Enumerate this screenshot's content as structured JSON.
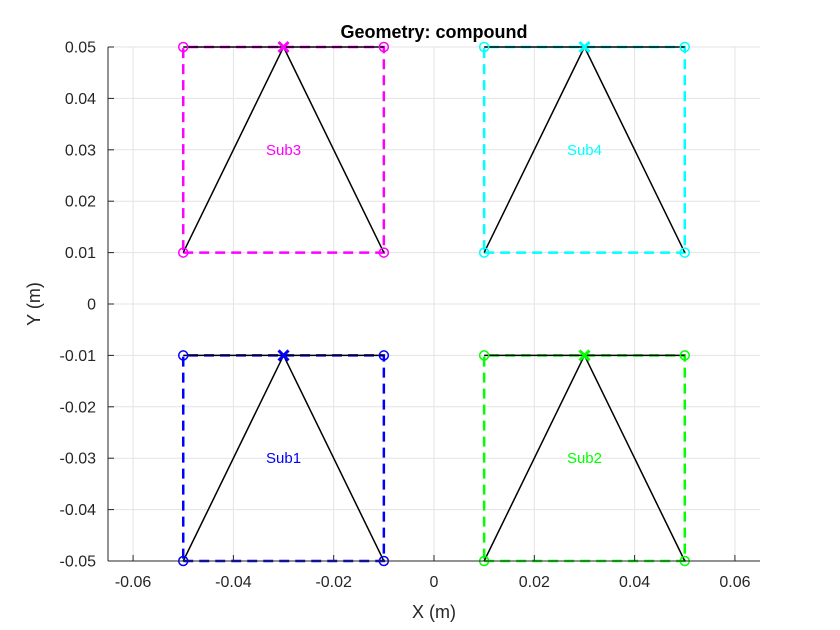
{
  "chart_data": {
    "type": "line",
    "title": "Geometry: compound",
    "xlabel": "X (m)",
    "ylabel": "Y (m)",
    "xlim": [
      -0.065,
      0.065
    ],
    "ylim": [
      -0.05,
      0.05
    ],
    "grid": true,
    "xticks": [
      -0.06,
      -0.04,
      -0.02,
      0,
      0.02,
      0.04,
      0.06
    ],
    "xtick_labels": [
      "-0.06",
      "-0.04",
      "-0.02",
      "0",
      "0.02",
      "0.04",
      "0.06"
    ],
    "yticks": [
      -0.05,
      -0.04,
      -0.03,
      -0.02,
      -0.01,
      0,
      0.01,
      0.02,
      0.03,
      0.04,
      0.05
    ],
    "ytick_labels": [
      "-0.05",
      "-0.04",
      "-0.03",
      "-0.02",
      "-0.01",
      "0",
      "0.01",
      "0.02",
      "0.03",
      "0.04",
      "0.05"
    ],
    "subdomains": [
      {
        "label": "Sub1",
        "color": "#0000ff",
        "box": [
          [
            -0.05,
            -0.05
          ],
          [
            -0.01,
            -0.05
          ],
          [
            -0.01,
            -0.01
          ],
          [
            -0.05,
            -0.01
          ]
        ],
        "triangle": [
          [
            -0.05,
            -0.05
          ],
          [
            -0.03,
            -0.01
          ],
          [
            -0.01,
            -0.05
          ]
        ],
        "apex": [
          -0.03,
          -0.01
        ],
        "label_pos": [
          -0.03,
          -0.03
        ]
      },
      {
        "label": "Sub2",
        "color": "#00ff00",
        "box": [
          [
            0.01,
            -0.05
          ],
          [
            0.05,
            -0.05
          ],
          [
            0.05,
            -0.01
          ],
          [
            0.01,
            -0.01
          ]
        ],
        "triangle": [
          [
            0.01,
            -0.05
          ],
          [
            0.03,
            -0.01
          ],
          [
            0.05,
            -0.05
          ]
        ],
        "apex": [
          0.03,
          -0.01
        ],
        "label_pos": [
          0.03,
          -0.03
        ]
      },
      {
        "label": "Sub3",
        "color": "#ff00ff",
        "box": [
          [
            -0.05,
            0.01
          ],
          [
            -0.01,
            0.01
          ],
          [
            -0.01,
            0.05
          ],
          [
            -0.05,
            0.05
          ]
        ],
        "triangle": [
          [
            -0.05,
            0.01
          ],
          [
            -0.03,
            0.05
          ],
          [
            -0.01,
            0.01
          ]
        ],
        "apex": [
          -0.03,
          0.05
        ],
        "label_pos": [
          -0.03,
          0.03
        ]
      },
      {
        "label": "Sub4",
        "color": "#00ffff",
        "box": [
          [
            0.01,
            0.01
          ],
          [
            0.05,
            0.01
          ],
          [
            0.05,
            0.05
          ],
          [
            0.01,
            0.05
          ]
        ],
        "triangle": [
          [
            0.01,
            0.01
          ],
          [
            0.03,
            0.05
          ],
          [
            0.05,
            0.01
          ]
        ],
        "apex": [
          0.03,
          0.05
        ],
        "label_pos": [
          0.03,
          0.03
        ]
      }
    ]
  }
}
